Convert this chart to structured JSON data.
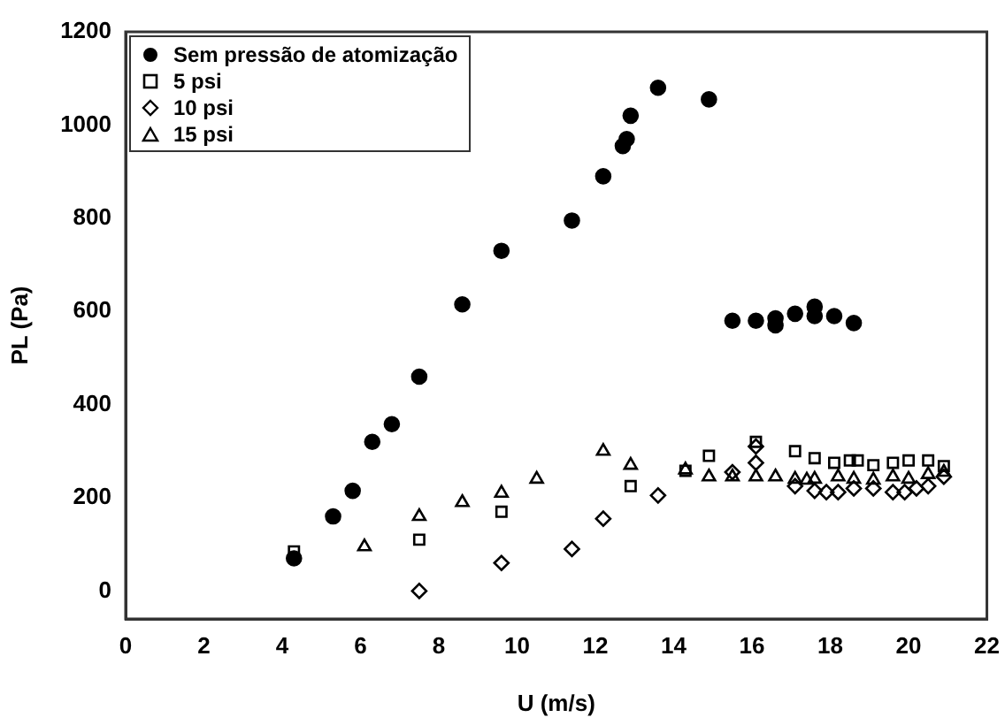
{
  "chart_data": {
    "type": "scatter",
    "xlabel": "U (m/s)",
    "ylabel": "PL (Pa)",
    "xlim": [
      0,
      22
    ],
    "xticks": [
      0,
      2,
      4,
      6,
      8,
      10,
      12,
      14,
      16,
      18,
      20,
      22
    ],
    "ylim": [
      -60,
      1200
    ],
    "yticks": [
      0,
      200,
      400,
      600,
      800,
      1000,
      1200
    ],
    "grid": false,
    "legend": "top left",
    "series": [
      {
        "name": "Sem pressão de atomização",
        "color": "#000000",
        "marker": "circle",
        "x": [
          4.3,
          5.3,
          5.8,
          6.3,
          6.8,
          7.5,
          8.6,
          9.6,
          11.4,
          12.2,
          12.7,
          12.8,
          12.9,
          13.6,
          14.9,
          15.5,
          16.1,
          16.6,
          16.6,
          17.1,
          17.6,
          17.6,
          18.1,
          18.6
        ],
        "values": [
          70,
          160,
          215,
          320,
          358,
          460,
          615,
          730,
          795,
          890,
          955,
          970,
          1020,
          1080,
          1055,
          580,
          580,
          570,
          585,
          595,
          590,
          610,
          590,
          575
        ]
      },
      {
        "name": "5 psi",
        "color": "#000000",
        "marker": "square",
        "x": [
          4.3,
          7.5,
          9.6,
          12.9,
          14.3,
          14.9,
          16.1,
          17.1,
          17.6,
          18.1,
          18.5,
          18.7,
          19.1,
          19.6,
          20.0,
          20.5,
          20.9
        ],
        "values": [
          85,
          110,
          170,
          225,
          258,
          290,
          320,
          300,
          285,
          275,
          280,
          280,
          270,
          275,
          280,
          280,
          268
        ]
      },
      {
        "name": "10 psi",
        "color": "#000000",
        "marker": "diamond",
        "x": [
          7.5,
          9.6,
          11.4,
          12.2,
          13.6,
          15.5,
          16.1,
          16.1,
          17.1,
          17.6,
          17.9,
          18.2,
          18.6,
          19.1,
          19.6,
          19.9,
          20.2,
          20.5,
          20.9
        ],
        "values": [
          0,
          60,
          90,
          155,
          205,
          255,
          275,
          310,
          225,
          215,
          212,
          212,
          220,
          220,
          212,
          212,
          220,
          225,
          245
        ]
      },
      {
        "name": "15 psi",
        "color": "#000000",
        "marker": "triangle",
        "x": [
          6.1,
          7.5,
          8.6,
          9.6,
          10.5,
          12.2,
          12.9,
          14.3,
          14.9,
          15.5,
          16.1,
          16.6,
          17.1,
          17.4,
          17.6,
          18.2,
          18.6,
          19.1,
          19.6,
          20.0,
          20.5,
          20.9
        ],
        "values": [
          95,
          160,
          190,
          210,
          240,
          300,
          270,
          260,
          245,
          245,
          245,
          245,
          240,
          238,
          240,
          245,
          240,
          238,
          245,
          240,
          250,
          255
        ]
      }
    ]
  }
}
